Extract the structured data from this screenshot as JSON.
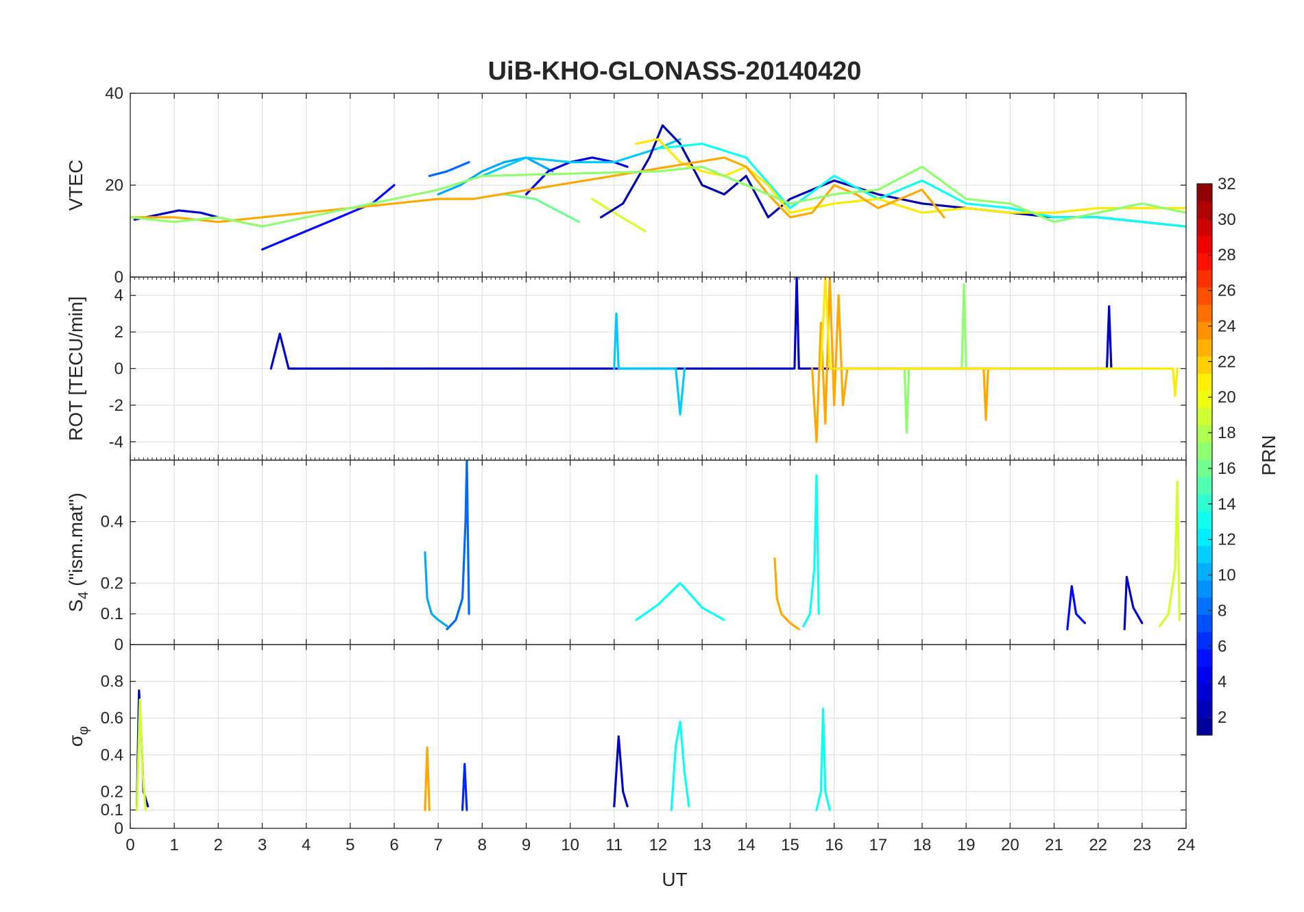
{
  "chart_data": {
    "type": "line",
    "title": "UiB-KHO-GLONASS-20140420",
    "xlabel": "UT",
    "xlim": [
      0,
      24
    ],
    "x_ticks": [
      "0",
      "1",
      "2",
      "3",
      "4",
      "5",
      "6",
      "7",
      "8",
      "9",
      "10",
      "11",
      "12",
      "13",
      "14",
      "15",
      "16",
      "17",
      "18",
      "19",
      "20",
      "21",
      "22",
      "23",
      "24"
    ],
    "grid": true,
    "panels": [
      {
        "id": "vtec",
        "ylabel": "VTEC",
        "ylim": [
          0,
          40
        ],
        "y_ticks": [
          "0",
          "20",
          "40"
        ],
        "y_tick_values": [
          0,
          20,
          40
        ],
        "series": [
          {
            "prn": 3,
            "x": [
              0.1,
              0.6,
              1.1,
              1.6,
              2.0
            ],
            "y": [
              12.5,
              13.5,
              14.5,
              14,
              13
            ]
          },
          {
            "prn": 5,
            "x": [
              3.0,
              3.5,
              4.0,
              4.5,
              5.0,
              5.5,
              6.0
            ],
            "y": [
              6,
              8,
              10,
              12,
              14,
              16,
              20
            ]
          },
          {
            "prn": 8,
            "x": [
              6.8,
              7.2,
              7.7
            ],
            "y": [
              22,
              23,
              25
            ]
          },
          {
            "prn": 10,
            "x": [
              7.0,
              7.5,
              8.0,
              8.5,
              9.0,
              9.6
            ],
            "y": [
              18,
              20,
              23,
              25,
              26,
              23
            ]
          },
          {
            "prn": 4,
            "x": [
              9.0,
              9.5,
              10.0,
              10.5,
              11.0,
              11.3
            ],
            "y": [
              18,
              23,
              25,
              26,
              25,
              24
            ]
          },
          {
            "prn": 11,
            "x": [
              8.0,
              9.0,
              10.0,
              11.0,
              12.0,
              12.5
            ],
            "y": [
              22,
              26,
              25,
              25,
              28,
              30
            ]
          },
          {
            "prn": 16,
            "x": [
              8.5,
              9.2,
              10.2
            ],
            "y": [
              18,
              17,
              12
            ]
          },
          {
            "prn": 19,
            "x": [
              10.5,
              11.0,
              11.7
            ],
            "y": [
              17,
              14,
              10
            ]
          },
          {
            "prn": 2,
            "x": [
              10.7,
              11.2,
              11.8,
              12.1,
              12.5,
              13.0,
              13.5,
              14.0,
              14.5,
              15.0,
              16.0,
              17.0,
              18.0,
              19.0,
              20.0,
              21.0,
              22.0,
              23.0,
              24.0
            ],
            "y": [
              13,
              16,
              26,
              33,
              29,
              20,
              18,
              22,
              13,
              17,
              21,
              18,
              16,
              15,
              14,
              13,
              13,
              12,
              11
            ]
          },
          {
            "prn": 13,
            "x": [
              12.0,
              13.0,
              14.0,
              15.0,
              16.0,
              17.0,
              18.0,
              19.0,
              20.0,
              21.0,
              22.0,
              23.0,
              24.0
            ],
            "y": [
              28,
              29,
              26,
              15,
              22,
              17,
              21,
              16,
              15,
              13,
              13,
              12,
              11
            ]
          },
          {
            "prn": 21,
            "x": [
              11.5,
              12.0,
              12.5,
              13.0,
              13.5,
              14.0,
              14.5,
              15.0,
              16.0,
              17.0,
              18.0,
              19.0,
              20.0,
              21.0,
              22.0,
              23.0,
              24.0
            ],
            "y": [
              29,
              30,
              25,
              23,
              22,
              24,
              20,
              14,
              16,
              17,
              14,
              15,
              14,
              14,
              15,
              15,
              15
            ]
          },
          {
            "prn": 23,
            "x": [
              0.0,
              1.0,
              2.0,
              3.0,
              4.0,
              5.0,
              6.0,
              7.0,
              7.8,
              13.5,
              14.0,
              14.5,
              15.0,
              15.5,
              16.0,
              16.5,
              17.0,
              17.5,
              18.0,
              18.5
            ],
            "y": [
              13,
              13,
              12,
              13,
              14,
              15,
              16,
              17,
              17,
              26,
              24,
              18,
              13,
              14,
              20,
              18,
              15,
              17,
              19,
              13
            ]
          },
          {
            "prn": 17,
            "x": [
              0.0,
              1.0,
              2.0,
              3.0,
              4.0,
              5.0,
              6.0,
              7.0,
              8.0,
              12.0,
              13.0,
              14.0,
              15.0,
              16.0,
              17.0,
              18.0,
              19.0,
              20.0,
              21.0,
              22.0,
              23.0,
              24.0
            ],
            "y": [
              13,
              12,
              13,
              11,
              13,
              15,
              17,
              19,
              22,
              23,
              24,
              20,
              16,
              18,
              19,
              24,
              17,
              16,
              12,
              14,
              16,
              14
            ]
          }
        ]
      },
      {
        "id": "rot",
        "ylabel": "ROT [TECU/min]",
        "ylim": [
          -5,
          5
        ],
        "y_ticks": [
          "-4",
          "-2",
          "0",
          "2",
          "4"
        ],
        "y_tick_values": [
          -4,
          -2,
          0,
          2,
          4
        ],
        "series": [
          {
            "prn": 3,
            "x": [
              3.2,
              3.4,
              3.6,
              15.1,
              15.15,
              15.2,
              22.2,
              22.25,
              22.3
            ],
            "y": [
              0,
              1.9,
              0,
              0,
              5,
              0,
              0,
              3.4,
              0
            ]
          },
          {
            "prn": 11,
            "x": [
              11.0,
              11.05,
              11.1,
              12.4,
              12.5,
              12.6
            ],
            "y": [
              0,
              3,
              0,
              0,
              -2.5,
              0
            ]
          },
          {
            "prn": 17,
            "x": [
              18.9,
              18.95,
              19.0,
              17.6,
              17.65,
              17.7
            ],
            "y": [
              0,
              4.6,
              0,
              0,
              -3.5,
              0
            ]
          },
          {
            "prn": 23,
            "x": [
              15.5,
              15.6,
              15.7,
              15.8,
              15.9,
              16.0,
              16.1,
              16.2,
              16.3,
              19.4,
              19.45,
              19.5
            ],
            "y": [
              0,
              -4,
              2.5,
              -3,
              5,
              -2,
              4,
              -2,
              0,
              0,
              -2.8,
              0
            ]
          },
          {
            "prn": 21,
            "x": [
              15.7,
              15.8,
              15.9,
              23.7,
              23.75,
              23.8
            ],
            "y": [
              0,
              5,
              0,
              0,
              -1.5,
              0
            ]
          }
        ]
      },
      {
        "id": "s4",
        "ylabel_parts": {
          "base": "S",
          "sub": "4",
          "rest": " (\"ism.mat\")"
        },
        "ylim": [
          0,
          0.6
        ],
        "y_ticks": [
          "0",
          "0.1",
          "0.2",
          "0.4"
        ],
        "y_tick_values": [
          0,
          0.1,
          0.2,
          0.4
        ],
        "series": [
          {
            "prn": 8,
            "x": [
              7.2,
              7.4,
              7.55,
              7.62,
              7.65,
              7.7
            ],
            "y": [
              0.05,
              0.08,
              0.15,
              0.4,
              0.6,
              0.1
            ]
          },
          {
            "prn": 10,
            "x": [
              6.7,
              6.75,
              6.85,
              7.0,
              7.2
            ],
            "y": [
              0.3,
              0.15,
              0.1,
              0.08,
              0.06
            ]
          },
          {
            "prn": 13,
            "x": [
              15.3,
              15.45,
              15.55,
              15.6,
              15.65
            ],
            "y": [
              0.06,
              0.1,
              0.25,
              0.55,
              0.1
            ]
          },
          {
            "prn": 23,
            "x": [
              14.65,
              14.7,
              14.8,
              15.0,
              15.2
            ],
            "y": [
              0.28,
              0.15,
              0.1,
              0.07,
              0.05
            ]
          },
          {
            "prn": 19,
            "x": [
              23.4,
              23.6,
              23.75,
              23.8,
              23.85
            ],
            "y": [
              0.06,
              0.1,
              0.25,
              0.53,
              0.08
            ]
          },
          {
            "prn": 5,
            "x": [
              21.3,
              21.4,
              21.5,
              21.7
            ],
            "y": [
              0.05,
              0.19,
              0.1,
              0.07
            ]
          },
          {
            "prn": 3,
            "x": [
              22.6,
              22.65,
              22.8,
              23.0
            ],
            "y": [
              0.05,
              0.22,
              0.12,
              0.07
            ]
          },
          {
            "prn": 13,
            "x": [
              11.5,
              12.0,
              12.5,
              13.0,
              13.5
            ],
            "y": [
              0.08,
              0.13,
              0.2,
              0.12,
              0.08
            ]
          }
        ]
      },
      {
        "id": "sigma_phi",
        "ylabel_parts": {
          "base": "σ",
          "sub": "φ",
          "rest": ""
        },
        "ylim": [
          0,
          1
        ],
        "y_ticks": [
          "0",
          "0.1",
          "0.2",
          "0.4",
          "0.6",
          "0.8"
        ],
        "y_tick_values": [
          0,
          0.1,
          0.2,
          0.4,
          0.6,
          0.8
        ],
        "series": [
          {
            "prn": 3,
            "x": [
              0.15,
              0.2,
              0.25,
              0.3,
              0.4
            ],
            "y": [
              0.12,
              0.75,
              0.5,
              0.2,
              0.12
            ]
          },
          {
            "prn": 19,
            "x": [
              0.15,
              0.22,
              0.28,
              0.35
            ],
            "y": [
              0.1,
              0.7,
              0.3,
              0.1
            ]
          },
          {
            "prn": 3,
            "x": [
              11.0,
              11.1,
              11.2,
              11.3
            ],
            "y": [
              0.12,
              0.5,
              0.2,
              0.12
            ]
          },
          {
            "prn": 13,
            "x": [
              12.3,
              12.4,
              12.5,
              12.6,
              12.7
            ],
            "y": [
              0.1,
              0.45,
              0.58,
              0.3,
              0.12
            ]
          },
          {
            "prn": 13,
            "x": [
              15.6,
              15.7,
              15.75,
              15.8,
              15.9
            ],
            "y": [
              0.1,
              0.2,
              0.65,
              0.2,
              0.1
            ]
          },
          {
            "prn": 23,
            "x": [
              6.7,
              6.75,
              6.8
            ],
            "y": [
              0.1,
              0.44,
              0.1
            ]
          },
          {
            "prn": 6,
            "x": [
              7.55,
              7.6,
              7.65
            ],
            "y": [
              0.1,
              0.35,
              0.1
            ]
          }
        ]
      }
    ],
    "colorbar": {
      "label": "PRN",
      "range": [
        1,
        32
      ],
      "ticks": [
        "2",
        "4",
        "6",
        "8",
        "10",
        "12",
        "14",
        "16",
        "18",
        "20",
        "22",
        "24",
        "26",
        "28",
        "30",
        "32"
      ],
      "tick_values": [
        2,
        4,
        6,
        8,
        10,
        12,
        14,
        16,
        18,
        20,
        22,
        24,
        26,
        28,
        30,
        32
      ],
      "colormap": "jet",
      "colors": [
        "#00008f",
        "#0000ff",
        "#0080ff",
        "#00ffff",
        "#80ff80",
        "#ffff00",
        "#ff8000",
        "#ff0000",
        "#800000"
      ]
    }
  }
}
